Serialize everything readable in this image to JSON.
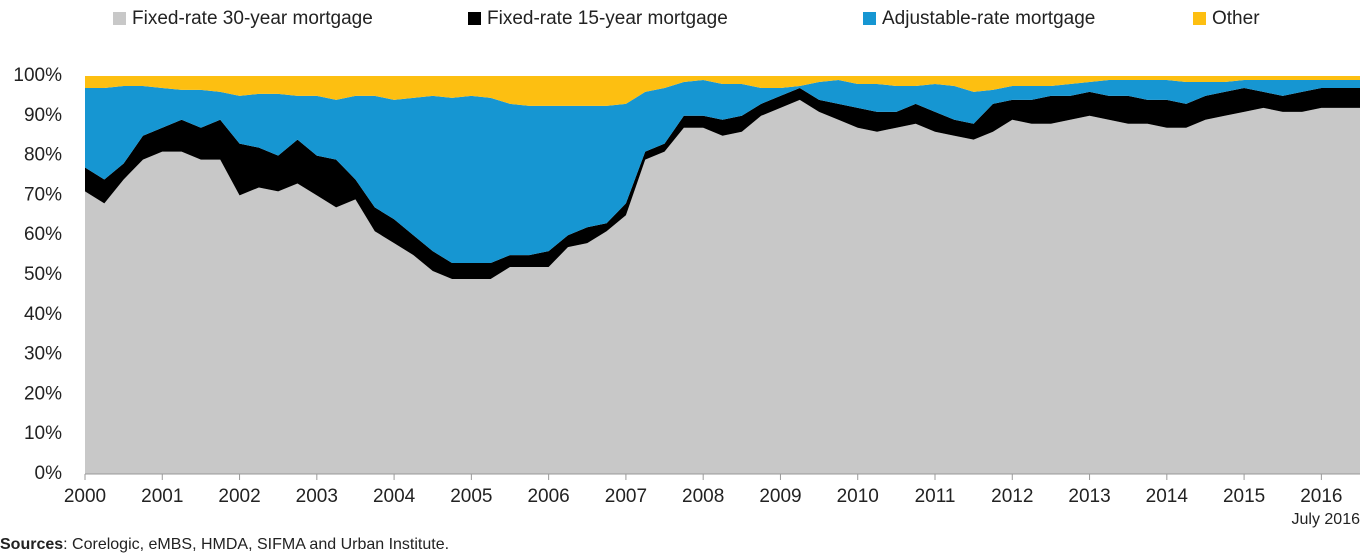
{
  "chart_data": {
    "type": "stacked-area",
    "x": [
      2000,
      2000.25,
      2000.5,
      2000.75,
      2001,
      2001.25,
      2001.5,
      2001.75,
      2002,
      2002.25,
      2002.5,
      2002.75,
      2003,
      2003.25,
      2003.5,
      2003.75,
      2004,
      2004.25,
      2004.5,
      2004.75,
      2005,
      2005.25,
      2005.5,
      2005.75,
      2006,
      2006.25,
      2006.5,
      2006.75,
      2007,
      2007.25,
      2007.5,
      2007.75,
      2008,
      2008.25,
      2008.5,
      2008.75,
      2009,
      2009.25,
      2009.5,
      2009.75,
      2010,
      2010.25,
      2010.5,
      2010.75,
      2011,
      2011.25,
      2011.5,
      2011.75,
      2012,
      2012.25,
      2012.5,
      2012.75,
      2013,
      2013.25,
      2013.5,
      2013.75,
      2014,
      2014.25,
      2014.5,
      2014.75,
      2015,
      2015.25,
      2015.5,
      2015.75,
      2016,
      2016.25,
      2016.5
    ],
    "series": [
      {
        "name": "Fixed-rate 30-year mortgage",
        "color": "#c8c8c8",
        "values": [
          71,
          68,
          74,
          79,
          81,
          81,
          79,
          79,
          70,
          72,
          71,
          73,
          70,
          67,
          69,
          61,
          58,
          55,
          51,
          49,
          49,
          49,
          52,
          52,
          52,
          57,
          58,
          61,
          65,
          79,
          81,
          87,
          87,
          85,
          86,
          90,
          92,
          94,
          91,
          89,
          87,
          86,
          87,
          88,
          86,
          85,
          84,
          86,
          89,
          88,
          88,
          89,
          90,
          89,
          88,
          88,
          87,
          87,
          89,
          90,
          91,
          92,
          91,
          91,
          92,
          92,
          92
        ]
      },
      {
        "name": "Fixed-rate 15-year mortgage",
        "color": "#000000",
        "values": [
          6,
          6,
          4,
          6,
          6,
          8,
          8,
          10,
          13,
          10,
          9,
          11,
          10,
          12,
          5,
          6,
          6,
          5,
          5,
          4,
          4,
          4,
          3,
          3,
          4,
          3,
          4,
          2,
          3,
          2,
          2,
          3,
          3,
          4,
          4,
          3,
          3,
          3,
          3,
          4,
          5,
          5,
          4,
          5,
          5,
          4,
          4,
          7,
          5,
          6,
          7,
          6,
          6,
          6,
          7,
          6,
          7,
          6,
          6,
          6,
          6,
          4,
          4,
          5,
          5,
          5,
          5
        ]
      },
      {
        "name": "Adjustable-rate mortgage",
        "color": "#1696d2",
        "values": [
          20,
          23,
          19.5,
          12.5,
          10,
          7.5,
          9.5,
          7,
          12,
          13.5,
          15.5,
          11,
          15,
          15,
          21,
          28,
          30,
          34.5,
          39,
          41.5,
          42,
          41.5,
          38,
          37.5,
          36.5,
          32.5,
          30.5,
          29.5,
          25,
          15,
          14,
          8.5,
          9,
          9,
          8,
          4,
          2,
          0.5,
          4.5,
          6,
          6,
          7,
          6.5,
          4.5,
          7,
          8.5,
          8,
          3.5,
          3.5,
          3.5,
          2.5,
          3,
          2.5,
          4,
          4,
          5,
          5,
          5.5,
          3.5,
          2.5,
          2,
          3,
          4,
          3,
          2,
          2,
          2
        ]
      },
      {
        "name": "Other",
        "color": "#fdbf11",
        "values": [
          3,
          3,
          2.5,
          2.5,
          3,
          3.5,
          3.5,
          4,
          5,
          4.5,
          4.5,
          5,
          5,
          6,
          5,
          5,
          6,
          5.5,
          5,
          5.5,
          5,
          5.5,
          7,
          7.5,
          7.5,
          7.5,
          7.5,
          7.5,
          7,
          4,
          3,
          1.5,
          1,
          2,
          2,
          3,
          3,
          2.5,
          1.5,
          1,
          2,
          2,
          2.5,
          2.5,
          2,
          2.5,
          4,
          3.5,
          2.5,
          2.5,
          2.5,
          2,
          1.5,
          1,
          1,
          1,
          1,
          1.5,
          1.5,
          1.5,
          1,
          1,
          1,
          1,
          1,
          1,
          1
        ]
      }
    ],
    "xlim": [
      2000,
      2016.5
    ],
    "xticks": [
      2000,
      2001,
      2002,
      2003,
      2004,
      2005,
      2006,
      2007,
      2008,
      2009,
      2010,
      2011,
      2012,
      2013,
      2014,
      2015,
      2016
    ],
    "ylim": [
      0,
      100
    ],
    "yticks": [
      {
        "value": 0,
        "label": "0%"
      },
      {
        "value": 10,
        "label": "10%"
      },
      {
        "value": 20,
        "label": "20%"
      },
      {
        "value": 30,
        "label": "30%"
      },
      {
        "value": 40,
        "label": "40%"
      },
      {
        "value": 50,
        "label": "50%"
      },
      {
        "value": 60,
        "label": "60%"
      },
      {
        "value": 70,
        "label": "70%"
      },
      {
        "value": 80,
        "label": "80%"
      },
      {
        "value": 90,
        "label": "90%"
      },
      {
        "value": 100,
        "label": "100%"
      }
    ],
    "date_note": "July 2016",
    "source_label": "Sources",
    "source_text": ": Corelogic, eMBS, HMDA, SIFMA and Urban Institute."
  }
}
